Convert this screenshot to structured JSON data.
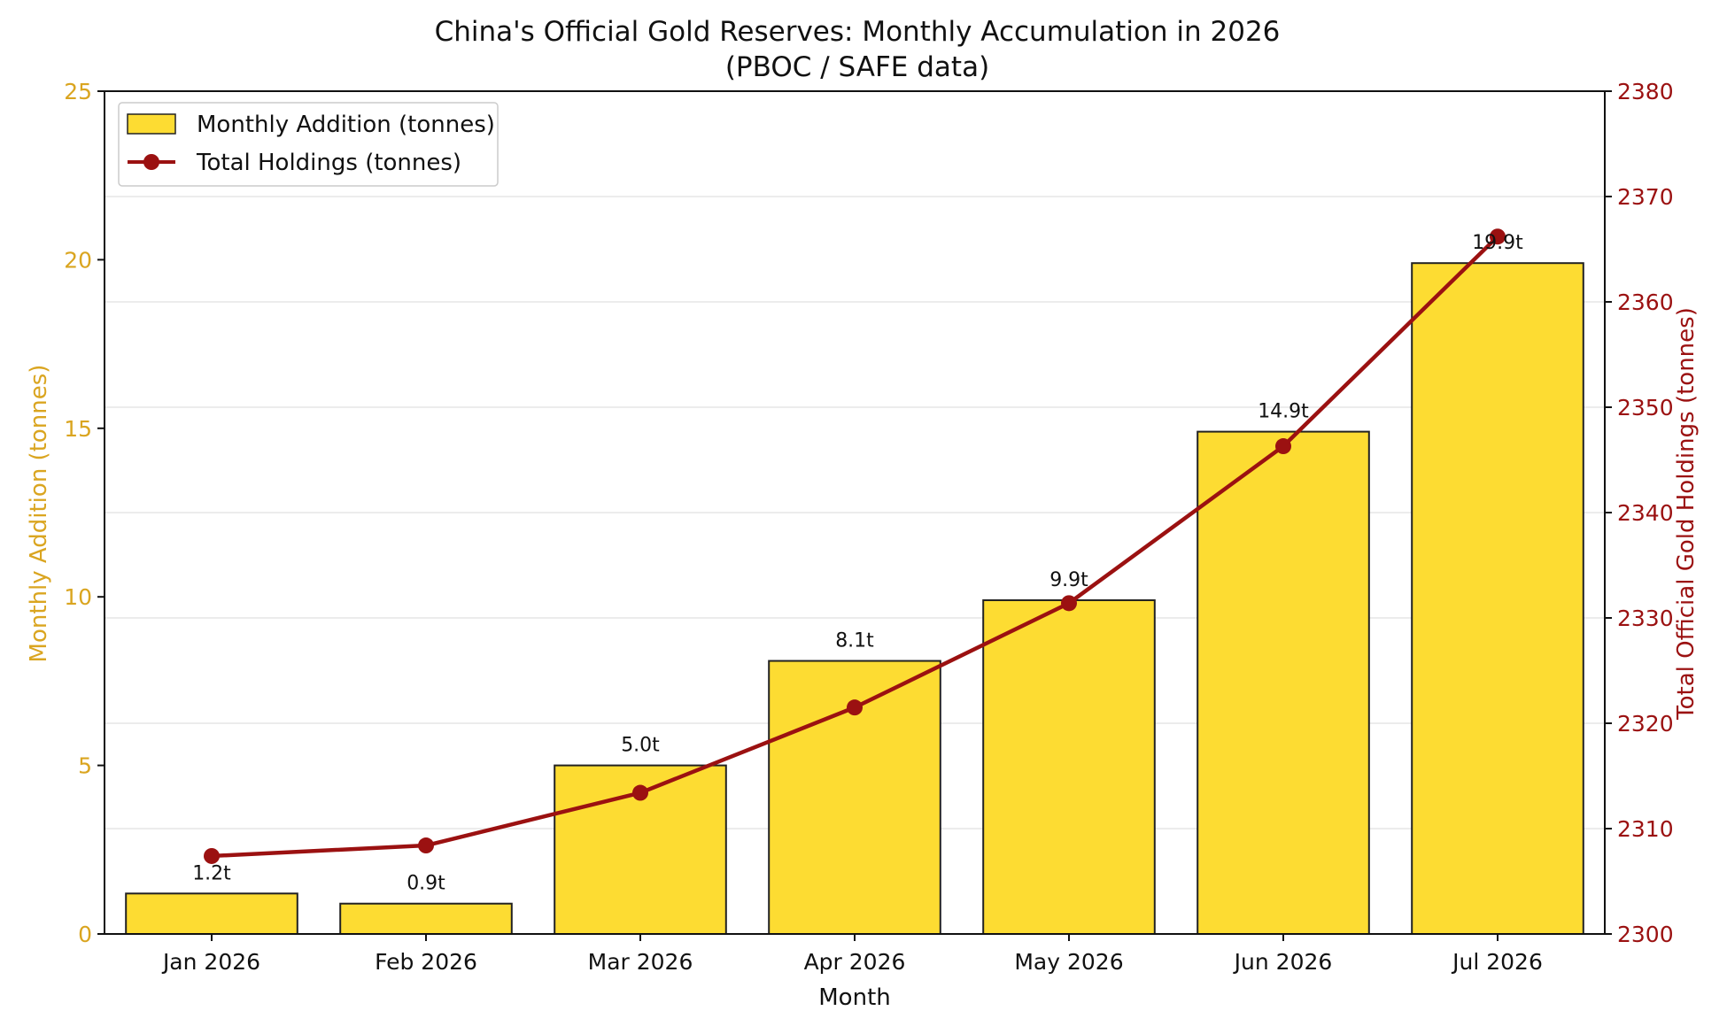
{
  "chart_data": {
    "type": "bar",
    "title": "China's Official Gold Reserves: Monthly Accumulation in 2026",
    "subtitle": "(PBOC / SAFE data)",
    "xlabel": "Month",
    "ylabel_left": "Monthly Addition (tonnes)",
    "ylabel_right": "Total Official Gold Holdings (tonnes)",
    "categories": [
      "Jan 2026",
      "Feb 2026",
      "Mar 2026",
      "Apr 2026",
      "May 2026",
      "Jun 2026",
      "Jul 2026"
    ],
    "series": [
      {
        "name": "Monthly Addition (tonnes)",
        "type": "bar",
        "axis": "left",
        "values": [
          1.2,
          0.9,
          5.0,
          8.1,
          9.9,
          14.9,
          19.9
        ],
        "labels": [
          "1.2t",
          "0.9t",
          "5.0t",
          "8.1t",
          "9.9t",
          "14.9t",
          "19.9t"
        ]
      },
      {
        "name": "Total Holdings (tonnes)",
        "type": "line",
        "axis": "right",
        "values": [
          2307.4,
          2308.4,
          2313.4,
          2321.5,
          2331.4,
          2346.3,
          2366.2
        ]
      }
    ],
    "ylim_left": [
      0,
      25
    ],
    "ylim_right": [
      2300,
      2380
    ],
    "yticks_left": [
      0,
      5,
      10,
      15,
      20,
      25
    ],
    "yticks_right": [
      2300,
      2310,
      2320,
      2330,
      2340,
      2350,
      2360,
      2370,
      2380
    ],
    "grid": true,
    "legend_position": "top-left",
    "colors": {
      "bar_fill": "#FDDC32",
      "bar_edge": "#222222",
      "line": "#9B1111",
      "left_axis": "#DAA520",
      "right_axis": "#9B1111",
      "grid": "#E6E6E6"
    }
  }
}
